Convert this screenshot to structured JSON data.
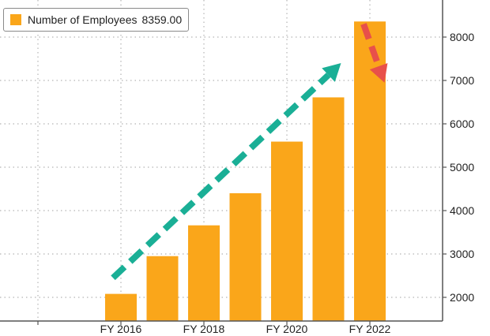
{
  "chart_data": {
    "type": "bar",
    "categories": [
      "FY 2016",
      "FY 2017",
      "FY 2018",
      "FY 2019",
      "FY 2020",
      "FY 2021",
      "FY 2022"
    ],
    "values": [
      2080,
      2950,
      3660,
      4400,
      5590,
      6610,
      8359
    ],
    "series": [
      {
        "name": "Number of Employees",
        "values": [
          2080,
          2950,
          3660,
          4400,
          5590,
          6610,
          8359
        ]
      }
    ],
    "x_tick_labels": [
      "FY 2016",
      "FY 2018",
      "FY 2020",
      "FY 2022"
    ],
    "y_ticks": [
      2000,
      3000,
      4000,
      5000,
      6000,
      7000,
      8000
    ],
    "ylim": [
      1500,
      8800
    ],
    "title": "",
    "xlabel": "",
    "ylabel": "",
    "grid": true,
    "legend_position": "top-left",
    "y_axis_side": "right",
    "annotations": [
      {
        "type": "dashed-arrow",
        "color": "#1aaf96",
        "from": {
          "x": "FY 2016",
          "y": 2450
        },
        "to": {
          "x": "FY 2021",
          "y": 7400
        }
      },
      {
        "type": "dashed-arrow",
        "color": "#e8504a",
        "from": {
          "x": "FY 2022",
          "y": 8300
        },
        "to": {
          "x": "FY 2023",
          "y": 6950
        }
      }
    ]
  },
  "legend": {
    "label": "Number of Employees",
    "value": "8359.00"
  },
  "colors": {
    "bar": "#faa61a",
    "grid": "#b4b4b4",
    "axis": "#555555",
    "text": "#222222"
  }
}
